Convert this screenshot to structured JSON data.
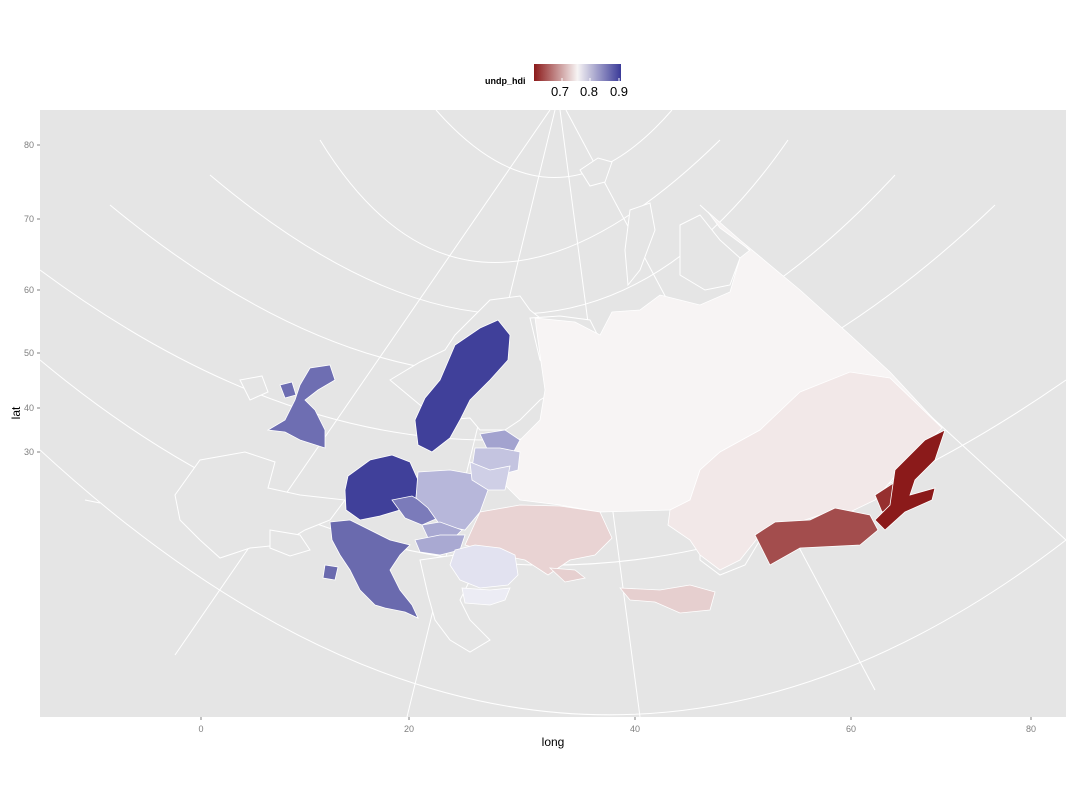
{
  "chart_data": {
    "type": "choropleth",
    "variable": "undp_hdi",
    "projection": "conic (Europe / northern Asia)",
    "xlabel": "long",
    "ylabel": "lat",
    "x_ticks": [
      "0",
      "20",
      "40",
      "60",
      "80"
    ],
    "y_ticks": [
      "80",
      "70",
      "60",
      "50",
      "40",
      "30"
    ],
    "legend": {
      "title": "undp_hdi",
      "placement": "top",
      "tick_labels": [
        "0.7",
        "0.8",
        "0.9"
      ],
      "color_low": "#8b1a1a",
      "color_mid": "#f7f4f4",
      "color_high": "#3a3a98"
    },
    "background": "#e5e5e5",
    "grid": true,
    "regions": [
      {
        "name": "Sweden",
        "value": 0.92,
        "color": "#40409a"
      },
      {
        "name": "Germany",
        "value": 0.92,
        "color": "#40409a"
      },
      {
        "name": "United Kingdom",
        "value": 0.88,
        "color": "#6e6eb2"
      },
      {
        "name": "Italy",
        "value": 0.87,
        "color": "#6a6aae"
      },
      {
        "name": "Czechia",
        "value": 0.86,
        "color": "#7b7bba"
      },
      {
        "name": "Poland",
        "value": 0.83,
        "color": "#b7b7da"
      },
      {
        "name": "Slovakia",
        "value": 0.83,
        "color": "#a9a9d2"
      },
      {
        "name": "Hungary",
        "value": 0.82,
        "color": "#a9a9d2"
      },
      {
        "name": "Lithuania",
        "value": 0.82,
        "color": "#a3a3cf"
      },
      {
        "name": "Latvia",
        "value": 0.81,
        "color": "#c4c4e0"
      },
      {
        "name": "Belarus",
        "value": 0.79,
        "color": "#cfcfe6"
      },
      {
        "name": "Romania",
        "value": 0.79,
        "color": "#e2e2f0"
      },
      {
        "name": "Bulgaria",
        "value": 0.78,
        "color": "#ececf4"
      },
      {
        "name": "Russia",
        "value": 0.77,
        "color": "#f7f4f4"
      },
      {
        "name": "Kazakhstan",
        "value": 0.75,
        "color": "#f2e8e8"
      },
      {
        "name": "Ukraine",
        "value": 0.74,
        "color": "#e9d3d3"
      },
      {
        "name": "Georgia / Armenia / Azerbaijan",
        "value": 0.73,
        "color": "#e6cfcf"
      },
      {
        "name": "Uzbekistan",
        "value": 0.66,
        "color": "#a34d4d"
      },
      {
        "name": "Kyrgyzstan",
        "value": 0.63,
        "color": "#96302f"
      },
      {
        "name": "Tajikistan",
        "value": 0.61,
        "color": "#8b1a1a"
      }
    ]
  }
}
